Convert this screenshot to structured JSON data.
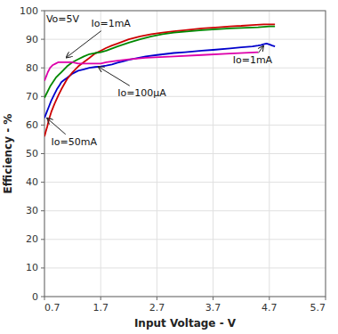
{
  "chart_data": {
    "type": "line",
    "xlabel": "Input Voltage - V",
    "ylabel": "Efficiency - %",
    "xlim": [
      0.7,
      5.7
    ],
    "ylim": [
      0,
      100
    ],
    "xticks": [
      0.7,
      1.7,
      2.7,
      3.7,
      4.7,
      5.7
    ],
    "yticks": [
      0,
      10,
      20,
      30,
      40,
      50,
      60,
      70,
      80,
      90,
      100
    ],
    "grid": true,
    "series": [
      {
        "color": "#0000cc",
        "x": [
          0.7,
          0.74,
          0.78,
          0.82,
          0.87,
          0.92,
          0.97,
          1.0,
          1.05,
          1.1,
          1.2,
          1.3,
          1.4,
          1.5,
          1.6,
          1.7,
          1.8,
          1.9,
          2.0,
          2.1,
          2.2,
          2.3,
          2.5,
          2.7,
          3.0,
          3.2,
          3.5,
          3.7,
          4.0,
          4.2,
          4.4,
          4.5,
          4.55,
          4.6,
          4.65,
          4.7,
          4.75,
          4.8
        ],
        "values": [
          62.5,
          64.5,
          66.5,
          68.5,
          70.5,
          72.5,
          74.0,
          75.0,
          75.8,
          76.5,
          78.0,
          79.0,
          79.5,
          80.0,
          80.3,
          80.5,
          80.8,
          81.2,
          81.8,
          82.3,
          82.8,
          83.2,
          84.0,
          84.5,
          85.2,
          85.5,
          86.0,
          86.3,
          86.8,
          87.2,
          87.5,
          87.8,
          88.0,
          88.3,
          88.5,
          88.2,
          87.8,
          87.5
        ]
      },
      {
        "color": "#cc0000",
        "x": [
          0.7,
          0.72,
          0.75,
          0.78,
          0.82,
          0.88,
          0.95,
          1.0,
          1.1,
          1.2,
          1.3,
          1.4,
          1.5,
          1.6,
          1.7,
          1.8,
          1.9,
          2.0,
          2.2,
          2.4,
          2.6,
          2.8,
          3.0,
          3.2,
          3.5,
          3.8,
          4.0,
          4.2,
          4.4,
          4.6,
          4.7,
          4.8
        ],
        "values": [
          56.0,
          57.5,
          59.5,
          62.0,
          64.5,
          67.5,
          70.5,
          72.5,
          76.0,
          78.5,
          80.5,
          82.0,
          83.5,
          85.0,
          86.0,
          87.0,
          87.8,
          88.5,
          90.0,
          91.0,
          91.8,
          92.3,
          92.8,
          93.2,
          93.8,
          94.2,
          94.5,
          94.7,
          95.0,
          95.2,
          95.2,
          95.2
        ]
      },
      {
        "color": "#008800",
        "x": [
          0.7,
          0.75,
          0.8,
          0.85,
          0.9,
          0.95,
          1.0,
          1.1,
          1.2,
          1.3,
          1.4,
          1.5,
          1.6,
          1.7,
          1.8,
          2.0,
          2.2,
          2.4,
          2.6,
          2.8,
          3.0,
          3.5,
          4.0,
          4.5,
          4.7,
          4.8
        ],
        "values": [
          69.5,
          71.5,
          73.5,
          75.0,
          76.5,
          77.5,
          78.5,
          80.5,
          82.0,
          83.0,
          84.0,
          84.8,
          85.2,
          85.5,
          86.0,
          87.5,
          88.8,
          90.0,
          91.0,
          91.8,
          92.3,
          93.2,
          93.8,
          94.2,
          94.5,
          94.5
        ]
      },
      {
        "color": "#dd00aa",
        "x": [
          0.7,
          0.73,
          0.76,
          0.8,
          0.85,
          0.9,
          0.95,
          1.0,
          1.05,
          1.1,
          1.2,
          1.3,
          1.4,
          1.5,
          1.6,
          1.7,
          1.8,
          2.0,
          2.2,
          2.5,
          3.0,
          3.5,
          4.0,
          4.5
        ],
        "values": [
          75.5,
          77.0,
          78.5,
          80.0,
          81.0,
          81.5,
          82.0,
          82.0,
          82.0,
          82.0,
          82.0,
          81.5,
          81.5,
          81.5,
          81.5,
          81.5,
          82.0,
          82.5,
          83.0,
          83.5,
          84.0,
          84.5,
          85.0,
          85.5
        ]
      }
    ],
    "annotations": [
      {
        "text": "Vo=5V",
        "x": 0.73,
        "y": 98.5
      },
      {
        "text": "Io=1mA",
        "x": 1.53,
        "y": 97.0,
        "arrow": [
          1.08,
          83.5
        ]
      },
      {
        "text": "Io=100μA",
        "x": 2.0,
        "y": 72.5,
        "arrow": [
          1.65,
          80.5
        ]
      },
      {
        "text": "Io=50mA",
        "x": 0.82,
        "y": 55.5,
        "arrow": [
          0.74,
          62.5
        ]
      },
      {
        "text": "Io=1mA",
        "x": 4.05,
        "y": 84.0,
        "arrow": [
          4.6,
          87.8
        ]
      }
    ]
  }
}
